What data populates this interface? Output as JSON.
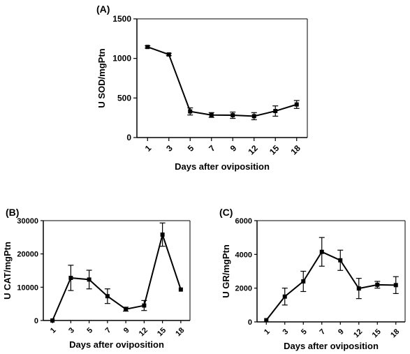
{
  "chart_data": [
    {
      "panel": "(A)",
      "type": "line",
      "xlabel": "Days after oviposition",
      "ylabel": "U SOD/mgPtn",
      "categories": [
        "1",
        "3",
        "5",
        "7",
        "9",
        "12",
        "15",
        "18"
      ],
      "values": [
        1145,
        1050,
        330,
        285,
        282,
        270,
        335,
        418
      ],
      "errors": [
        15,
        15,
        45,
        30,
        40,
        45,
        65,
        50
      ],
      "ylim": [
        0,
        1500
      ],
      "yticks": [
        "0",
        "500",
        "1000",
        "1500"
      ],
      "grid": false,
      "marker": "square"
    },
    {
      "panel": "(B)",
      "type": "line",
      "xlabel": "Days after oviposition",
      "ylabel": "U CAT/mgPtn",
      "categories": [
        "1",
        "3",
        "5",
        "7",
        "9",
        "12",
        "15",
        "18"
      ],
      "values": [
        0,
        12800,
        12300,
        7300,
        3400,
        4500,
        25800,
        9300
      ],
      "errors": [
        0,
        3800,
        2800,
        2200,
        600,
        1500,
        3500,
        0
      ],
      "ylim": [
        0,
        30000
      ],
      "yticks": [
        "0",
        "10000",
        "20000",
        "30000"
      ],
      "grid": false,
      "marker": "square"
    },
    {
      "panel": "(C)",
      "type": "line",
      "xlabel": "Days after oviposition",
      "ylabel": "U GR/mgPtn",
      "categories": [
        "1",
        "3",
        "5",
        "7",
        "9",
        "12",
        "15",
        "18"
      ],
      "values": [
        100,
        1500,
        2400,
        4150,
        3650,
        1980,
        2200,
        2180
      ],
      "errors": [
        0,
        500,
        600,
        850,
        600,
        600,
        200,
        500
      ],
      "ylim": [
        0,
        6000
      ],
      "yticks": [
        "0",
        "2000",
        "4000",
        "6000"
      ],
      "grid": false,
      "marker": "square"
    }
  ]
}
